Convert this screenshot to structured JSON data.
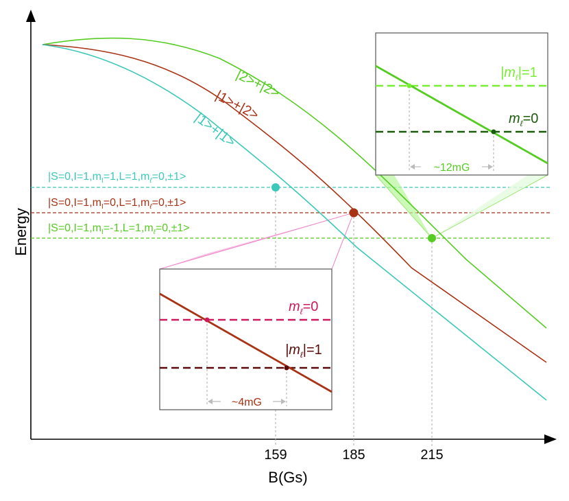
{
  "axes": {
    "y_label": "Energy",
    "x_label": "B(Gs)",
    "x_ticks": [
      "159",
      "185",
      "215"
    ]
  },
  "curves": {
    "c22": "|2>+|2>",
    "c12": "|1>+|2>",
    "c11": "|1>+|1>"
  },
  "levels": {
    "l1": {
      "pre": "|S=0,I=1,m",
      "sub": "I",
      "mid": "=1,L=1,m",
      "sub2": "ℓ",
      "post": "=0,±1>"
    },
    "l2": {
      "pre": "|S=0,I=1,m",
      "sub": "I",
      "mid": "=0,L=1,m",
      "sub2": "ℓ",
      "post": "=0,±1>"
    },
    "l3": {
      "pre": "|S=0,I=1,m",
      "sub": "I",
      "mid": "=-1,L=1,m",
      "sub2": "ℓ",
      "post": "=0,±1>"
    }
  },
  "inset_top": {
    "label_upper": {
      "pre": "|m",
      "sub": "ℓ",
      "post": "|=1"
    },
    "label_lower": {
      "pre": "m",
      "sub": "ℓ",
      "post": "=0"
    },
    "spacing": "~12mG"
  },
  "inset_bottom": {
    "label_upper": {
      "pre": "m",
      "sub": "ℓ",
      "post": "=0"
    },
    "label_lower": {
      "pre": "|m",
      "sub": "ℓ",
      "post": "|=1"
    },
    "spacing": "~4mG"
  },
  "colors": {
    "teal": "#3cc8b8",
    "brown": "#a83214",
    "green": "#55cc22",
    "light_green": "#77ee33",
    "dark_green": "#1a5c0a",
    "magenta": "#cc1a5a",
    "dark_red": "#5a0a0a",
    "pink": "#f080c8"
  }
}
